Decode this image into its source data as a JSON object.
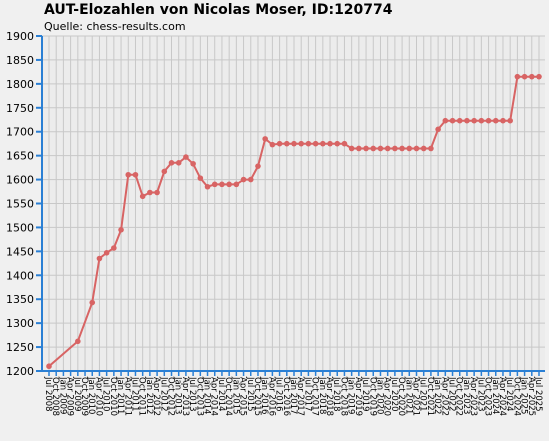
{
  "chart_data": {
    "type": "line",
    "title": "AUT-Elozahlen von Nicolas Moser, ID:120774",
    "subtitle": "Quelle: chess-results.com",
    "xlabel": "",
    "ylabel": "",
    "ylim": [
      1200,
      1900
    ],
    "yticks": [
      1200,
      1250,
      1300,
      1350,
      1400,
      1450,
      1500,
      1550,
      1600,
      1650,
      1700,
      1750,
      1800,
      1850,
      1900
    ],
    "grid": true,
    "legend": "none",
    "colors": {
      "line": "#d86464",
      "axis": "#2a7fd4",
      "grid": "#c8c8c8",
      "background": "#ececec"
    },
    "categories": [
      "Jul 2008",
      "Oct 2008",
      "Jan 2009",
      "Apr 2009",
      "Jul 2009",
      "Oct 2009",
      "Jan 2010",
      "Apr 2010",
      "Jul 2010",
      "Oct 2010",
      "Jan 2011",
      "Apr 2011",
      "Jul 2011",
      "Oct 2011",
      "Jan 2012",
      "Apr 2012",
      "Jul 2012",
      "Oct 2012",
      "Jan 2013",
      "Apr 2013",
      "Jul 2013",
      "Oct 2013",
      "Jan 2014",
      "Apr 2014",
      "Jul 2014",
      "Oct 2014",
      "Jan 2015",
      "Apr 2015",
      "Jul 2015",
      "Oct 2015",
      "Jan 2016",
      "Apr 2016",
      "Jul 2016",
      "Oct 2016",
      "Jan 2017",
      "Apr 2017",
      "Jul 2017",
      "Oct 2017",
      "Jan 2018",
      "Apr 2018",
      "Jul 2018",
      "Oct 2018",
      "Jan 2019",
      "Apr 2019",
      "Jul 2019",
      "Oct 2019",
      "Jan 2020",
      "Apr 2020",
      "Jul 2020",
      "Oct 2020",
      "Jan 2021",
      "Apr 2021",
      "Jul 2021",
      "Oct 2021",
      "Jan 2022",
      "Apr 2022",
      "Jul 2022",
      "Oct 2022",
      "Jan 2023",
      "Apr 2023",
      "Jul 2023",
      "Oct 2023",
      "Jan 2024",
      "Apr 2024",
      "Jul 2024",
      "Oct 2024",
      "Jan 2025",
      "Apr 2025",
      "Jul 2025"
    ],
    "series": [
      {
        "x": [
          "Jul 2008",
          "Jul 2009",
          "Jan 2010",
          "Apr 2010",
          "Jul 2010",
          "Oct 2010",
          "Jan 2011",
          "Apr 2011",
          "Jul 2011",
          "Oct 2011",
          "Jan 2012",
          "Apr 2012",
          "Jul 2012",
          "Oct 2012",
          "Jan 2013",
          "Apr 2013",
          "Jul 2013",
          "Oct 2013",
          "Jan 2014",
          "Apr 2014",
          "Jul 2014",
          "Oct 2014",
          "Jan 2015",
          "Apr 2015",
          "Jul 2015",
          "Oct 2015",
          "Jan 2016",
          "Apr 2016",
          "Jul 2016",
          "Oct 2016",
          "Jan 2017",
          "Apr 2017",
          "Jul 2017",
          "Oct 2017",
          "Jan 2018",
          "Apr 2018",
          "Jul 2018",
          "Oct 2018",
          "Jan 2019",
          "Apr 2019",
          "Jul 2019",
          "Oct 2019",
          "Jan 2020",
          "Apr 2020",
          "Jul 2020",
          "Oct 2020",
          "Jan 2021",
          "Apr 2021",
          "Jul 2021",
          "Oct 2021",
          "Jan 2022",
          "Apr 2022",
          "Jul 2022",
          "Oct 2022",
          "Jan 2023",
          "Apr 2023",
          "Jul 2023",
          "Oct 2023",
          "Jan 2024",
          "Apr 2024",
          "Jul 2024",
          "Oct 2024",
          "Jan 2025",
          "Apr 2025",
          "Jul 2025"
        ],
        "values": [
          1210,
          1262,
          1343,
          1435,
          1447,
          1457,
          1495,
          1610,
          1610,
          1565,
          1573,
          1573,
          1617,
          1635,
          1635,
          1647,
          1633,
          1603,
          1585,
          1590,
          1590,
          1590,
          1590,
          1600,
          1600,
          1628,
          1685,
          1673,
          1675,
          1675,
          1675,
          1675,
          1675,
          1675,
          1675,
          1675,
          1675,
          1675,
          1665,
          1665,
          1665,
          1665,
          1665,
          1665,
          1665,
          1665,
          1665,
          1665,
          1665,
          1665,
          1705,
          1723,
          1723,
          1723,
          1723,
          1723,
          1723,
          1723,
          1723,
          1723,
          1723,
          1815,
          1815,
          1815,
          1815
        ]
      }
    ]
  }
}
